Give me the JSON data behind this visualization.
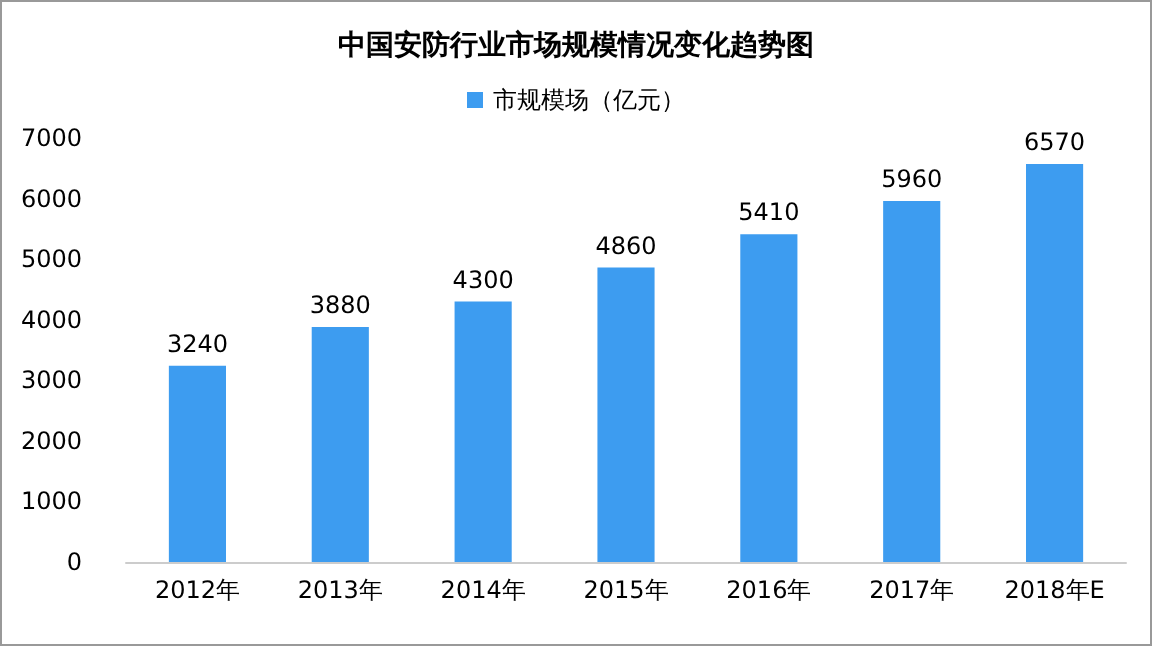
{
  "chart_data": {
    "type": "bar",
    "title": "中国安防行业市场规模情况变化趋势图",
    "categories": [
      "2012年",
      "2013年",
      "2014年",
      "2015年",
      "2016年",
      "2017年",
      "2018年E"
    ],
    "series": [
      {
        "name": "市规模场（亿元）",
        "color": "#3d9cf0",
        "values": [
          3240,
          3880,
          4300,
          4860,
          5410,
          5960,
          6570
        ]
      }
    ],
    "ylim": [
      0,
      7000
    ],
    "yticks": [
      0,
      1000,
      2000,
      3000,
      4000,
      5000,
      6000,
      7000
    ],
    "grid": false,
    "legend": "top",
    "data_labels": true
  }
}
